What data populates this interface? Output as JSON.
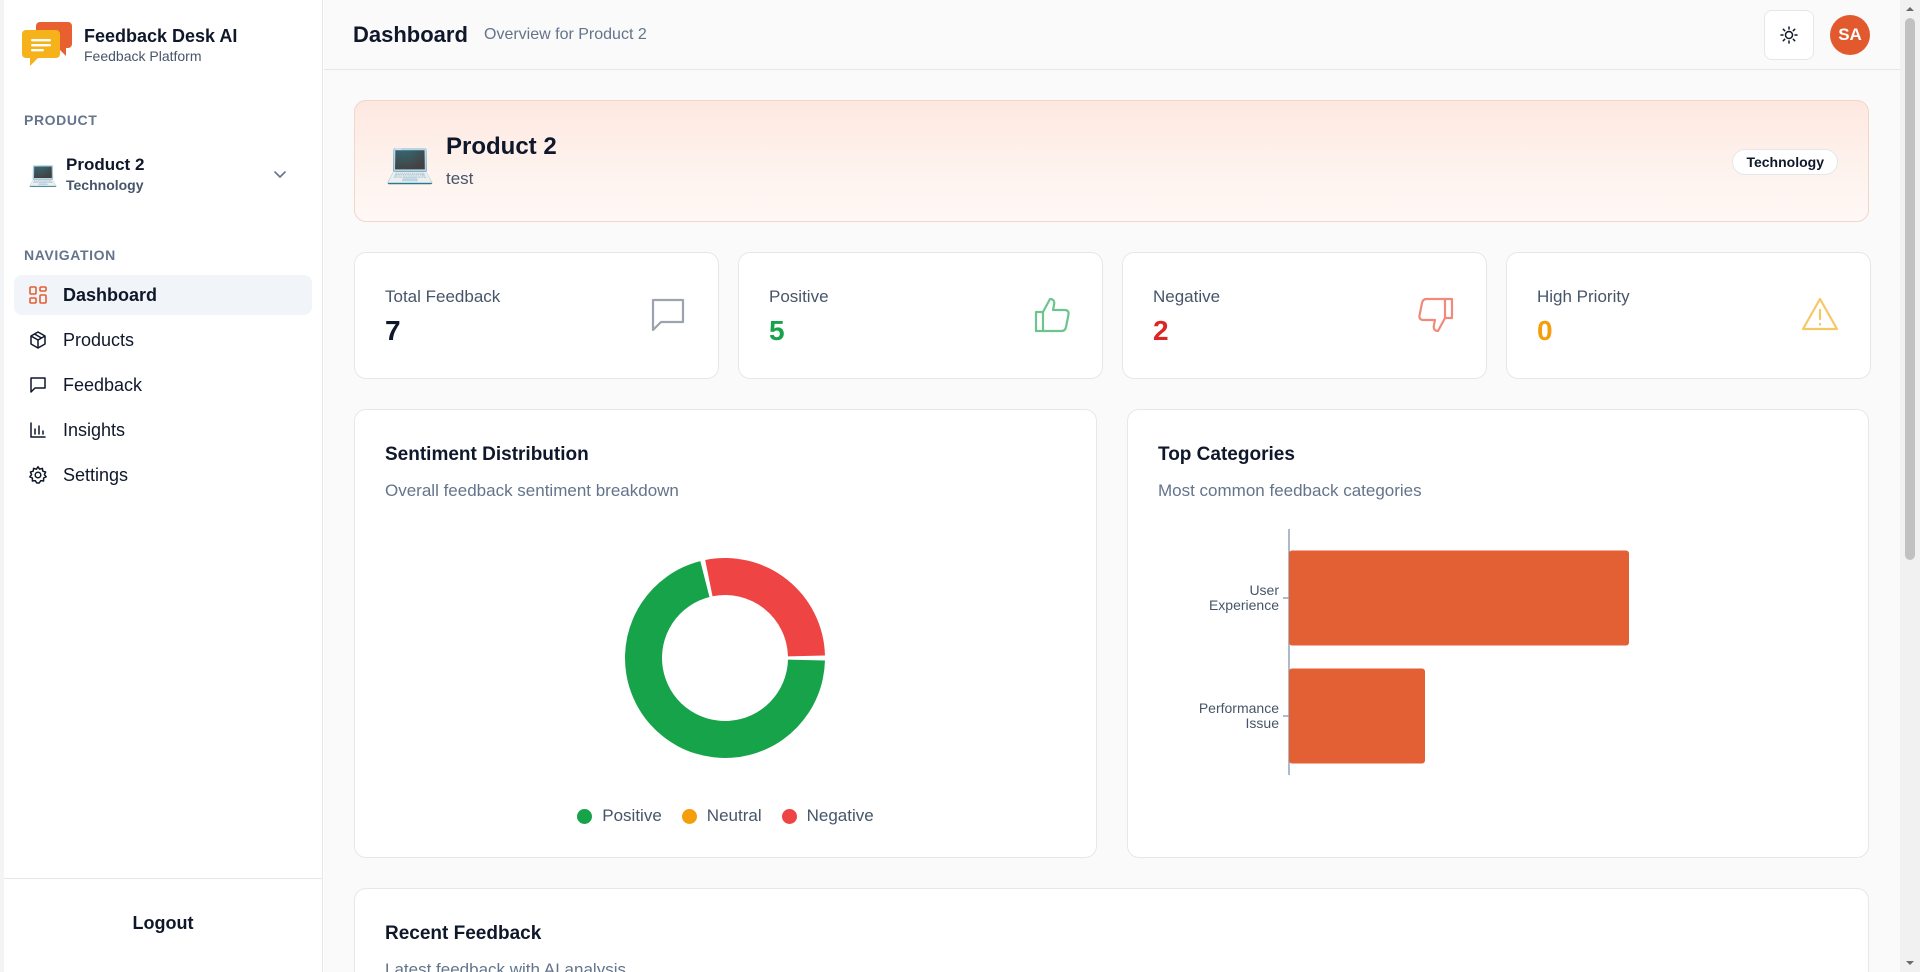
{
  "brand": {
    "title": "Feedback Desk AI",
    "subtitle": "Feedback Platform"
  },
  "sidebar": {
    "product_section_label": "PRODUCT",
    "selected_product": {
      "emoji": "💻",
      "name": "Product 2",
      "category": "Technology"
    },
    "nav_section_label": "NAVIGATION",
    "nav": [
      {
        "label": "Dashboard",
        "icon": "grid-icon",
        "active": true
      },
      {
        "label": "Products",
        "icon": "box-icon",
        "active": false
      },
      {
        "label": "Feedback",
        "icon": "message-square-icon",
        "active": false
      },
      {
        "label": "Insights",
        "icon": "bar-chart-icon",
        "active": false
      },
      {
        "label": "Settings",
        "icon": "gear-icon",
        "active": false
      }
    ],
    "logout_label": "Logout"
  },
  "header": {
    "title": "Dashboard",
    "subtitle": "Overview for Product 2",
    "avatar_initials": "SA"
  },
  "hero": {
    "emoji": "💻",
    "name": "Product 2",
    "description": "test",
    "badge": "Technology"
  },
  "stats": [
    {
      "label": "Total Feedback",
      "value": "7",
      "color": "#0f172a",
      "icon": "message-square-icon"
    },
    {
      "label": "Positive",
      "value": "5",
      "color": "#16a34a",
      "icon": "thumbs-up-icon"
    },
    {
      "label": "Negative",
      "value": "2",
      "color": "#dc2626",
      "icon": "thumbs-down-icon"
    },
    {
      "label": "High Priority",
      "value": "0",
      "color": "#f59e0b",
      "icon": "alert-triangle-icon"
    }
  ],
  "sentiment_panel": {
    "title": "Sentiment Distribution",
    "subtitle": "Overall feedback sentiment breakdown"
  },
  "categories_panel": {
    "title": "Top Categories",
    "subtitle": "Most common feedback categories"
  },
  "recent_panel": {
    "title": "Recent Feedback",
    "subtitle": "Latest feedback with AI analysis"
  },
  "colors": {
    "accent": "#e35f34",
    "positive": "#16a34a",
    "neutral": "#f59e0b",
    "negative": "#ef4444"
  },
  "chart_data": [
    {
      "type": "pie",
      "variant": "donut",
      "categories": [
        "Positive",
        "Neutral",
        "Negative"
      ],
      "values": [
        5,
        0,
        2
      ],
      "colors": [
        "#16a34a",
        "#f59e0b",
        "#ef4444"
      ],
      "legend": "bottom"
    },
    {
      "type": "bar",
      "orientation": "horizontal",
      "categories": [
        [
          "User",
          "Experience"
        ],
        [
          "Performance",
          "Issue"
        ]
      ],
      "values": [
        5,
        2
      ],
      "color": "#e35f34",
      "grid": false
    }
  ]
}
